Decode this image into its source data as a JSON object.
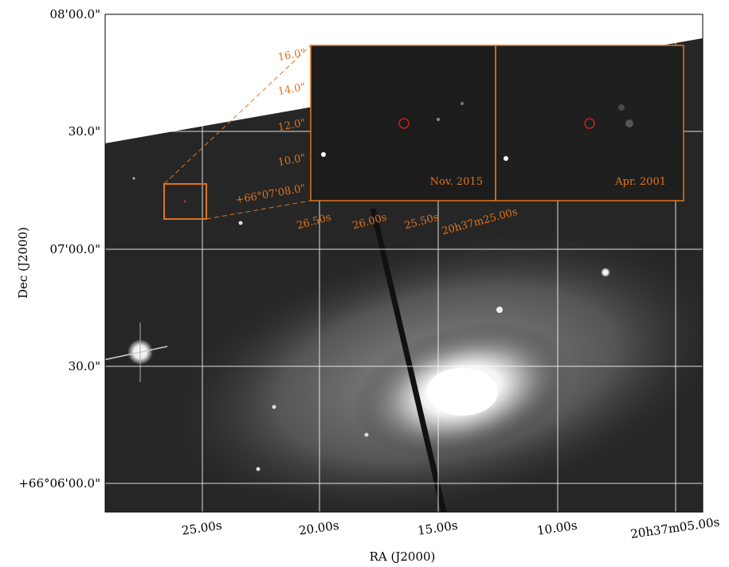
{
  "axes": {
    "x_label": "RA (J2000)",
    "y_label": "Dec (J2000)",
    "x_ticks": [
      "25.00s",
      "20.00s",
      "15.00s",
      "10.00s",
      "20h37m05.00s"
    ],
    "y_ticks": [
      "08'00.0\"",
      "30.0\"",
      "07'00.0\"",
      "30.0\"",
      "+66°06'00.0\""
    ]
  },
  "inset": {
    "x_ticks": [
      "26.50s",
      "26.00s",
      "25.50s",
      "20h37m25.00s"
    ],
    "y_ticks": [
      "16.0\"",
      "14.0\"",
      "12.0\"",
      "10.0\"",
      "+66°07'08.0\""
    ],
    "panels": [
      {
        "label": "Nov. 2015"
      },
      {
        "label": "Apr. 2001"
      }
    ]
  }
}
